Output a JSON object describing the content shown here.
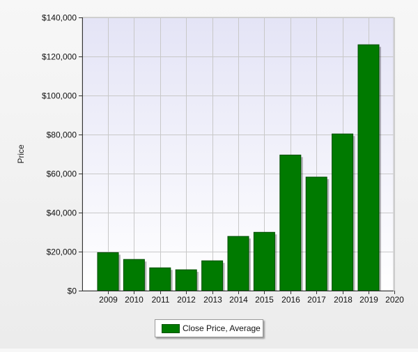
{
  "chart_data": {
    "type": "bar",
    "categories": [
      "2009",
      "2010",
      "2011",
      "2012",
      "2013",
      "2014",
      "2015",
      "2016",
      "2017",
      "2018",
      "2019"
    ],
    "x_ticks": [
      "2009",
      "2010",
      "2011",
      "2012",
      "2013",
      "2014",
      "2015",
      "2016",
      "2017",
      "2018",
      "2019",
      "2020"
    ],
    "series": [
      {
        "name": "Close Price, Average",
        "values": [
          19500,
          16000,
          11700,
          10700,
          15300,
          27800,
          29900,
          69500,
          58200,
          80300,
          126000
        ]
      }
    ],
    "ylabel": "Price",
    "xlabel": "",
    "ylim": [
      0,
      140000
    ],
    "y_ticks": [
      0,
      20000,
      40000,
      60000,
      80000,
      100000,
      120000,
      140000
    ],
    "y_tick_labels": [
      "$0",
      "$20,000",
      "$40,000",
      "$60,000",
      "$80,000",
      "$100,000",
      "$120,000",
      "$140,000"
    ],
    "grid": true,
    "legend_position": "bottom-center",
    "colors": {
      "bar_fill": "#007a00",
      "bar_border": "#004d00",
      "plot_background_top": "#e6e6f7",
      "plot_background_bottom": "#ffffff",
      "grid": "#c8c8c8"
    }
  }
}
